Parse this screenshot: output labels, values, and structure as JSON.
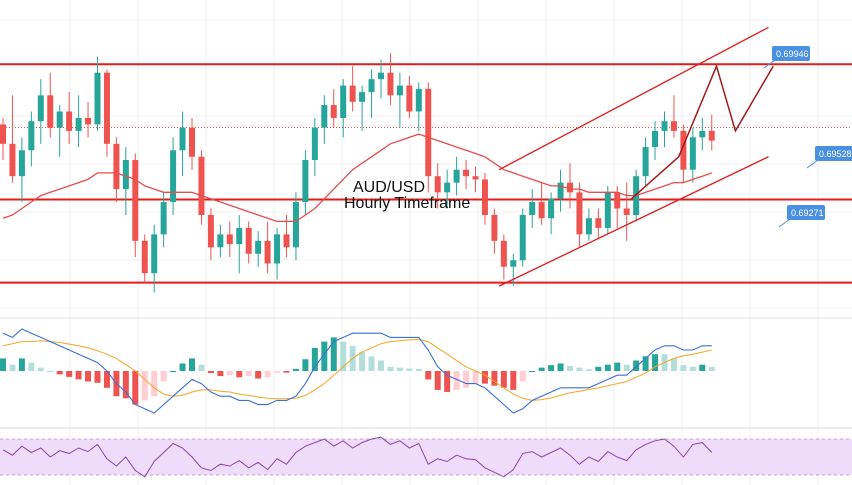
{
  "chart_data": {
    "type": "candlestick",
    "title_line1": "AUD/USD",
    "title_line2": "Hourly Timeframe",
    "colors": {
      "up": "#26a69a",
      "down": "#ef5350",
      "levels": "#e31b1b",
      "ma": "#e84c4c",
      "macd": "#3b6fd8",
      "signal": "#f5a623",
      "rsi": "#8e44ad",
      "rsi_band": "#efdcfb",
      "label_bg": "#4a90e2"
    },
    "price_range": [
      0.6918,
      0.7012
    ],
    "levels": [
      {
        "name": "resistance",
        "value": 0.69946,
        "label": "0.69946"
      },
      {
        "name": "pivot",
        "value": 0.69528,
        "label": "0.69528"
      },
      {
        "name": "support",
        "value": 0.69271,
        "label": "0.69271"
      }
    ],
    "dotted_level": 0.6975,
    "candles": [
      [
        0.6976,
        0.6978,
        0.6965,
        0.697
      ],
      [
        0.697,
        0.6985,
        0.6958,
        0.696
      ],
      [
        0.696,
        0.6972,
        0.6952,
        0.6968
      ],
      [
        0.6968,
        0.698,
        0.6963,
        0.6977
      ],
      [
        0.6977,
        0.699,
        0.697,
        0.6985
      ],
      [
        0.6985,
        0.6992,
        0.6972,
        0.6975
      ],
      [
        0.6975,
        0.6982,
        0.6966,
        0.698
      ],
      [
        0.698,
        0.6986,
        0.697,
        0.6974
      ],
      [
        0.6974,
        0.6985,
        0.6969,
        0.6978
      ],
      [
        0.6978,
        0.6983,
        0.6972,
        0.6976
      ],
      [
        0.6976,
        0.6997,
        0.6974,
        0.6992
      ],
      [
        0.6992,
        0.6993,
        0.6966,
        0.697
      ],
      [
        0.697,
        0.6972,
        0.6952,
        0.6956
      ],
      [
        0.6956,
        0.6969,
        0.6948,
        0.6965
      ],
      [
        0.6965,
        0.6967,
        0.6935,
        0.694
      ],
      [
        0.694,
        0.6942,
        0.6927,
        0.693
      ],
      [
        0.693,
        0.6945,
        0.6924,
        0.6942
      ],
      [
        0.6942,
        0.6955,
        0.6938,
        0.6952
      ],
      [
        0.6952,
        0.6972,
        0.6948,
        0.6968
      ],
      [
        0.6968,
        0.698,
        0.696,
        0.6975
      ],
      [
        0.6975,
        0.6978,
        0.6962,
        0.6966
      ],
      [
        0.6966,
        0.6968,
        0.6945,
        0.6948
      ],
      [
        0.6948,
        0.695,
        0.6934,
        0.6938
      ],
      [
        0.6938,
        0.6945,
        0.6935,
        0.6942
      ],
      [
        0.6942,
        0.6946,
        0.6935,
        0.6939
      ],
      [
        0.6939,
        0.6948,
        0.693,
        0.6944
      ],
      [
        0.6944,
        0.6946,
        0.6933,
        0.6936
      ],
      [
        0.6936,
        0.6943,
        0.6932,
        0.694
      ],
      [
        0.694,
        0.6946,
        0.693,
        0.6933
      ],
      [
        0.6933,
        0.6944,
        0.6928,
        0.6942
      ],
      [
        0.6942,
        0.6948,
        0.6935,
        0.6938
      ],
      [
        0.6938,
        0.6955,
        0.6934,
        0.6952
      ],
      [
        0.6952,
        0.6968,
        0.6948,
        0.6965
      ],
      [
        0.6965,
        0.6978,
        0.696,
        0.6975
      ],
      [
        0.6975,
        0.6985,
        0.697,
        0.6982
      ],
      [
        0.6982,
        0.6987,
        0.6975,
        0.6978
      ],
      [
        0.6978,
        0.699,
        0.6972,
        0.6988
      ],
      [
        0.6988,
        0.6994,
        0.698,
        0.6983
      ],
      [
        0.6983,
        0.6988,
        0.6974,
        0.6986
      ],
      [
        0.6986,
        0.6993,
        0.6978,
        0.699
      ],
      [
        0.699,
        0.6996,
        0.6984,
        0.6992
      ],
      [
        0.6992,
        0.6998,
        0.6982,
        0.6985
      ],
      [
        0.6985,
        0.6992,
        0.6975,
        0.6988
      ],
      [
        0.6988,
        0.6991,
        0.6978,
        0.698
      ],
      [
        0.698,
        0.6989,
        0.6974,
        0.6987
      ],
      [
        0.6987,
        0.6989,
        0.6955,
        0.696
      ],
      [
        0.696,
        0.6964,
        0.695,
        0.6955
      ],
      [
        0.6955,
        0.6962,
        0.695,
        0.6958
      ],
      [
        0.6958,
        0.6966,
        0.6954,
        0.6962
      ],
      [
        0.6962,
        0.6965,
        0.6956,
        0.696
      ],
      [
        0.696,
        0.6963,
        0.6955,
        0.6959
      ],
      [
        0.6959,
        0.6961,
        0.6945,
        0.6948
      ],
      [
        0.6948,
        0.695,
        0.6936,
        0.694
      ],
      [
        0.694,
        0.6942,
        0.6928,
        0.6932
      ],
      [
        0.6932,
        0.6936,
        0.6926,
        0.6934
      ],
      [
        0.6934,
        0.695,
        0.6932,
        0.6948
      ],
      [
        0.6948,
        0.6956,
        0.6944,
        0.6952
      ],
      [
        0.6952,
        0.6958,
        0.6945,
        0.6947
      ],
      [
        0.6947,
        0.6955,
        0.6942,
        0.6953
      ],
      [
        0.6953,
        0.6962,
        0.6949,
        0.6958
      ],
      [
        0.6958,
        0.6964,
        0.695,
        0.6955
      ],
      [
        0.6955,
        0.6958,
        0.6938,
        0.6942
      ],
      [
        0.6942,
        0.695,
        0.694,
        0.6947
      ],
      [
        0.6947,
        0.695,
        0.6941,
        0.6944
      ],
      [
        0.6944,
        0.6957,
        0.6942,
        0.6955
      ],
      [
        0.6955,
        0.6957,
        0.6944,
        0.695
      ],
      [
        0.695,
        0.6958,
        0.694,
        0.6948
      ],
      [
        0.6948,
        0.6962,
        0.6946,
        0.696
      ],
      [
        0.696,
        0.6972,
        0.6957,
        0.6969
      ],
      [
        0.6969,
        0.6977,
        0.6965,
        0.6974
      ],
      [
        0.6974,
        0.698,
        0.6969,
        0.6977
      ],
      [
        0.6977,
        0.6985,
        0.6972,
        0.6974
      ],
      [
        0.6974,
        0.6976,
        0.6958,
        0.6962
      ],
      [
        0.6962,
        0.6975,
        0.6958,
        0.6972
      ],
      [
        0.6972,
        0.6978,
        0.6968,
        0.6974
      ],
      [
        0.6974,
        0.6979,
        0.6968,
        0.6971
      ]
    ],
    "ma": [
      0.6947,
      0.6948,
      0.695,
      0.6952,
      0.6954,
      0.6955,
      0.6956,
      0.6957,
      0.6958,
      0.6959,
      0.6961,
      0.6961,
      0.6961,
      0.696,
      0.6959,
      0.6957,
      0.6956,
      0.6955,
      0.6955,
      0.6955,
      0.6955,
      0.6954,
      0.6953,
      0.6952,
      0.6951,
      0.695,
      0.6949,
      0.6948,
      0.6947,
      0.6946,
      0.6946,
      0.6946,
      0.6948,
      0.695,
      0.6953,
      0.6956,
      0.6959,
      0.6962,
      0.6964,
      0.6966,
      0.6968,
      0.697,
      0.6971,
      0.6972,
      0.6973,
      0.6972,
      0.6971,
      0.697,
      0.6969,
      0.6968,
      0.6967,
      0.6966,
      0.6964,
      0.6962,
      0.6961,
      0.696,
      0.6959,
      0.6958,
      0.6957,
      0.6957,
      0.6956,
      0.6956,
      0.6955,
      0.6955,
      0.6955,
      0.6955,
      0.6954,
      0.6954,
      0.6955,
      0.6956,
      0.6957,
      0.6958,
      0.6958,
      0.6959,
      0.696,
      0.6961
    ],
    "channel": {
      "lower": [
        [
          0.6926,
          52.5
        ],
        [
          0.6966,
          81
        ]
      ],
      "upper": [
        [
          0.6962,
          52.5
        ],
        [
          0.7006,
          81
        ]
      ]
    },
    "projection": [
      [
        0.6953,
        66.5
      ],
      [
        0.6966,
        71.5
      ],
      [
        0.6994,
        75.5
      ],
      [
        0.6974,
        77.5
      ],
      [
        0.6994,
        81.5
      ]
    ],
    "macd_line": [
      0.9,
      0.8,
      1.0,
      0.9,
      0.8,
      0.7,
      0.6,
      0.5,
      0.4,
      0.3,
      0.2,
      0.0,
      -0.3,
      -0.5,
      -0.8,
      -0.9,
      -1.0,
      -0.8,
      -0.6,
      -0.4,
      -0.2,
      -0.3,
      -0.5,
      -0.6,
      -0.6,
      -0.7,
      -0.7,
      -0.8,
      -0.8,
      -0.7,
      -0.7,
      -0.6,
      -0.3,
      0.1,
      0.4,
      0.7,
      0.8,
      0.9,
      0.9,
      0.9,
      0.9,
      0.8,
      0.8,
      0.8,
      0.8,
      0.5,
      0.1,
      -0.1,
      -0.2,
      -0.3,
      -0.3,
      -0.4,
      -0.6,
      -0.8,
      -1.0,
      -0.9,
      -0.7,
      -0.6,
      -0.5,
      -0.4,
      -0.4,
      -0.4,
      -0.4,
      -0.3,
      -0.2,
      -0.1,
      -0.1,
      0.1,
      0.3,
      0.5,
      0.6,
      0.6,
      0.5,
      0.5,
      0.6,
      0.6
    ],
    "signal_line": [
      0.6,
      0.65,
      0.7,
      0.7,
      0.72,
      0.7,
      0.68,
      0.64,
      0.6,
      0.55,
      0.48,
      0.4,
      0.3,
      0.15,
      0.0,
      -0.2,
      -0.4,
      -0.55,
      -0.6,
      -0.58,
      -0.5,
      -0.45,
      -0.45,
      -0.48,
      -0.5,
      -0.55,
      -0.58,
      -0.62,
      -0.65,
      -0.66,
      -0.66,
      -0.65,
      -0.58,
      -0.45,
      -0.3,
      -0.1,
      0.1,
      0.3,
      0.45,
      0.55,
      0.65,
      0.7,
      0.72,
      0.74,
      0.75,
      0.7,
      0.55,
      0.4,
      0.25,
      0.1,
      0.0,
      -0.1,
      -0.25,
      -0.4,
      -0.55,
      -0.65,
      -0.7,
      -0.68,
      -0.64,
      -0.58,
      -0.52,
      -0.48,
      -0.44,
      -0.4,
      -0.35,
      -0.3,
      -0.25,
      -0.15,
      -0.05,
      0.1,
      0.2,
      0.3,
      0.36,
      0.4,
      0.45,
      0.5
    ],
    "rsi": [
      58,
      52,
      62,
      55,
      60,
      50,
      57,
      54,
      60,
      56,
      64,
      48,
      40,
      50,
      35,
      28,
      45,
      55,
      65,
      60,
      50,
      38,
      35,
      42,
      40,
      46,
      38,
      44,
      36,
      48,
      42,
      55,
      62,
      66,
      70,
      62,
      68,
      60,
      66,
      70,
      72,
      64,
      68,
      60,
      65,
      42,
      48,
      45,
      52,
      48,
      47,
      38,
      33,
      28,
      36,
      54,
      56,
      50,
      55,
      60,
      52,
      42,
      50,
      45,
      56,
      50,
      46,
      58,
      64,
      68,
      70,
      62,
      50,
      64,
      66,
      55
    ]
  }
}
